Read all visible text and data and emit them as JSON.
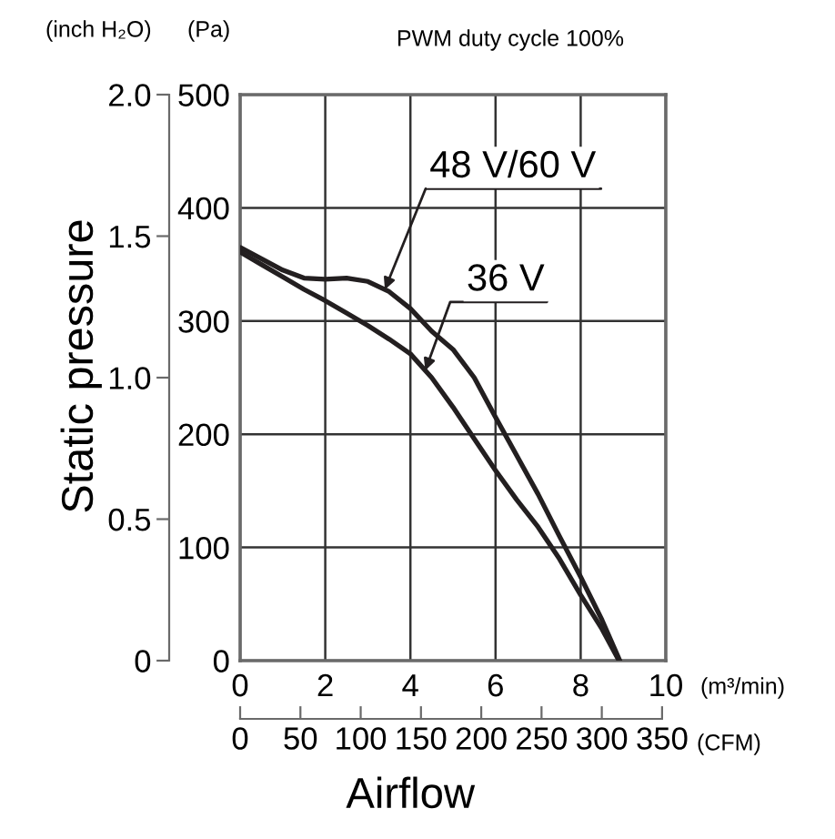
{
  "chart_data": {
    "type": "line",
    "title": "PWM duty cycle 100%",
    "xlabel": "Airflow",
    "y2label": "Static pressure",
    "x2label": "(CFM)",
    "annotations": [
      "(inch H₂O)",
      "(Pa)",
      "(m³/min)"
    ],
    "xlim": [
      0,
      10
    ],
    "xticks": [
      0,
      2,
      4,
      6,
      8,
      10
    ],
    "ylim": [
      0,
      500
    ],
    "yticks": [
      0,
      100,
      200,
      300,
      400,
      500
    ],
    "y2lim": [
      0,
      2
    ],
    "y2ticks": [
      0,
      0.5,
      {
        "value": 1,
        "label": "1.0"
      },
      1.5,
      {
        "value": 2,
        "label": "2.0"
      }
    ],
    "x2lim": [
      0,
      353.1
    ],
    "x2ticks": [
      0,
      50,
      100,
      150,
      200,
      250,
      300,
      350
    ],
    "grid": true,
    "series": [
      {
        "name": "48 V/60 V",
        "color": "#231f20",
        "x": [
          0,
          0.5,
          1,
          1.5,
          2,
          2.5,
          3,
          3.5,
          4,
          4.5,
          5,
          5.5,
          6,
          6.5,
          7,
          7.5,
          8,
          8.5,
          8.92
        ],
        "values": [
          365,
          355,
          345,
          338,
          337,
          338,
          335,
          326,
          311,
          291,
          275,
          250,
          215,
          181,
          147,
          110,
          74,
          36,
          0
        ]
      },
      {
        "name": "36 V",
        "color": "#231f20",
        "x": [
          0,
          0.5,
          1,
          1.5,
          2,
          2.5,
          3,
          3.5,
          4,
          4.5,
          5,
          5.5,
          6,
          6.5,
          7,
          7.5,
          8,
          8.5,
          8.9
        ],
        "values": [
          361,
          350,
          339,
          328,
          318,
          307,
          296,
          284,
          271,
          250,
          224,
          196,
          168,
          142,
          118,
          90,
          58,
          28,
          0
        ]
      }
    ]
  }
}
